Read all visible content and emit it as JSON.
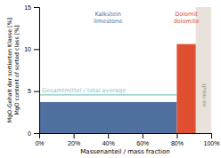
{
  "chart_data": {
    "type": "bar",
    "xlabel": "Massenanteil / mass fraction",
    "ylabel": [
      "MgO-Gehalt der sortierten Klasse [%]",
      "MgO content of sorted class [%]"
    ],
    "bins": [
      0.0,
      0.8,
      0.91
    ],
    "values": [
      3.7,
      10.6
    ],
    "colors": [
      "#5070a0",
      "#e05030"
    ],
    "bar_labels": [
      [
        "Kalkstein",
        "limestone"
      ],
      [
        "Dolomit",
        "dolomite"
      ]
    ],
    "regions": [
      {
        "start": 0.91,
        "end": 1.0,
        "label": "no result",
        "color": "#e8e2da"
      }
    ],
    "reference_lines": [
      {
        "value": 4.55,
        "xmax": 0.8,
        "label": "Gesamtmittel / total average",
        "color": "#80c8c0"
      }
    ],
    "xlim": [
      0,
      1.0
    ],
    "xticks": [
      {
        "value": 0.0,
        "label": "0%"
      },
      {
        "value": 0.2,
        "label": "20%"
      },
      {
        "value": 0.4,
        "label": "40%"
      },
      {
        "value": 0.6,
        "label": "60%"
      },
      {
        "value": 0.8,
        "label": "80%"
      },
      {
        "value": 1.0,
        "label": "100%"
      }
    ],
    "ylim": [
      0,
      15
    ],
    "yticks": [
      0,
      5,
      10,
      15
    ],
    "grid": false
  }
}
